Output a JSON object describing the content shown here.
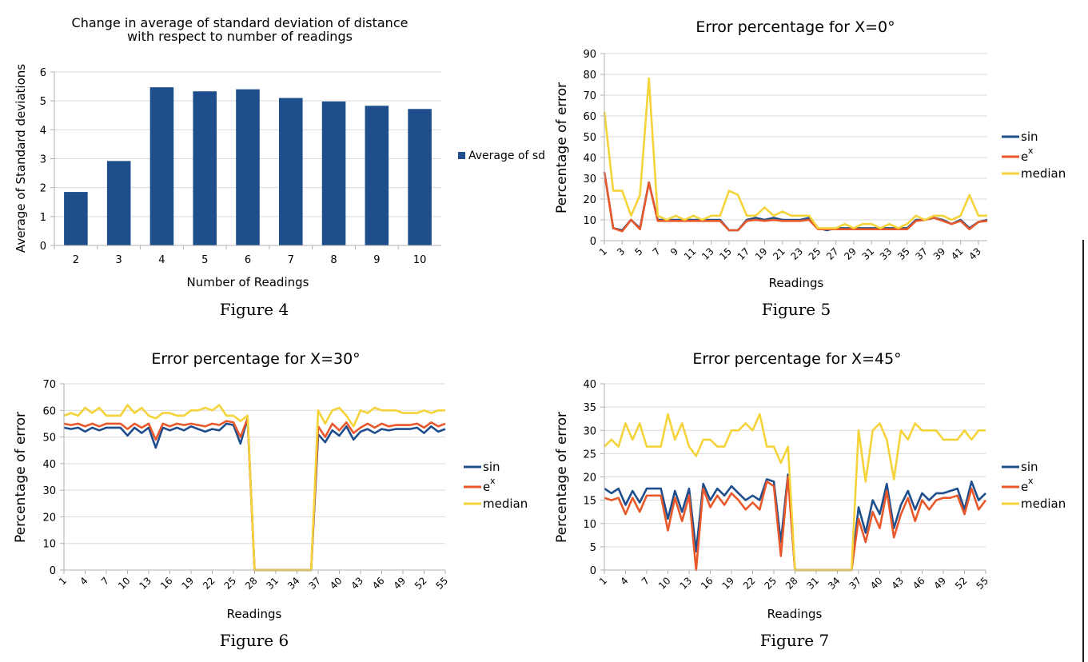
{
  "colors": {
    "bar": "#1f4e8c",
    "sin": "#1f4e8c",
    "ex": "#e8582a",
    "median": "#f5d33a",
    "grid": "#d9d9d9",
    "axis": "#b0b0b0"
  },
  "captions": [
    "Figure 4",
    "Figure 5",
    "Figure 6",
    "Figure 7"
  ],
  "chart_data": [
    {
      "type": "bar",
      "title_lines": [
        "Change in average of standard deviation of distance",
        "with respect to number of readings"
      ],
      "xlabel": "Number of Readings",
      "ylabel": "Average of Standard deviations",
      "categories": [
        "2",
        "3",
        "4",
        "5",
        "6",
        "7",
        "8",
        "9",
        "10"
      ],
      "series": [
        {
          "name": "Average of sd",
          "values": [
            1.85,
            2.92,
            5.47,
            5.33,
            5.4,
            5.1,
            4.98,
            4.83,
            4.72
          ]
        }
      ],
      "ylim": [
        0,
        6
      ],
      "yticks": [
        "0",
        "1",
        "2",
        "3",
        "4",
        "5",
        "6"
      ],
      "grid": true,
      "legend": "right"
    },
    {
      "type": "line",
      "title": "Error percentage for X=0°",
      "xlabel": "Readings",
      "ylabel": "Percentage of error",
      "ylim": [
        0,
        90
      ],
      "yticks": [
        "0",
        "10",
        "20",
        "30",
        "40",
        "50",
        "60",
        "70",
        "80",
        "90"
      ],
      "xticks": [
        "1",
        "3",
        "5",
        "7",
        "9",
        "11",
        "13",
        "15",
        "17",
        "19",
        "21",
        "23",
        "25",
        "27",
        "29",
        "31",
        "33",
        "35",
        "37",
        "39",
        "41",
        "43"
      ],
      "grid": true,
      "legend": "right",
      "legend_labels": [
        "sin",
        "e",
        "x",
        "median"
      ],
      "x": [
        1,
        2,
        3,
        4,
        5,
        6,
        7,
        8,
        9,
        10,
        11,
        12,
        13,
        14,
        15,
        16,
        17,
        18,
        19,
        20,
        21,
        22,
        23,
        24,
        25,
        26,
        27,
        28,
        29,
        30,
        31,
        32,
        33,
        34,
        35,
        36,
        37,
        38,
        39,
        40,
        41,
        42,
        43,
        44
      ],
      "series": [
        {
          "name": "sin",
          "values": [
            33,
            6,
            5,
            10,
            6,
            28,
            10,
            10,
            10,
            10,
            10,
            10,
            10,
            10,
            5,
            5,
            10,
            11,
            10,
            11,
            10,
            10,
            10,
            11,
            6,
            5,
            6,
            6,
            6,
            6,
            6,
            6,
            6,
            6,
            6,
            10,
            10,
            11,
            10,
            8,
            10,
            6,
            9,
            10
          ]
        },
        {
          "name": "ex",
          "values": [
            33,
            6,
            4.5,
            10,
            5.5,
            28,
            9.5,
            9.5,
            9.5,
            9.5,
            9.5,
            9.5,
            9.5,
            9.5,
            5,
            5,
            9.5,
            10,
            9.5,
            10,
            9.5,
            9.5,
            9.5,
            10,
            5.5,
            5.5,
            5.5,
            5.5,
            5.5,
            5.5,
            5.5,
            5.5,
            5.5,
            5.5,
            5.5,
            9.5,
            10,
            11,
            9.5,
            8,
            9.5,
            5.5,
            9,
            9.5
          ]
        },
        {
          "name": "median",
          "values": [
            62,
            24,
            24,
            12,
            22,
            78,
            12,
            10,
            12,
            10,
            12,
            10,
            12,
            12,
            24,
            22,
            12,
            12,
            16,
            12,
            14,
            12,
            12,
            12,
            6,
            6,
            6,
            8,
            6,
            8,
            8,
            6,
            8,
            6,
            8,
            12,
            10,
            12,
            12,
            10,
            12,
            22,
            12,
            12
          ]
        }
      ]
    },
    {
      "type": "line",
      "title": "Error percentage for X=30°",
      "xlabel": "Readings",
      "ylabel": "Percentage of error",
      "ylim": [
        0,
        70
      ],
      "yticks": [
        "0",
        "10",
        "20",
        "30",
        "40",
        "50",
        "60",
        "70"
      ],
      "xticks": [
        "1",
        "4",
        "7",
        "10",
        "13",
        "16",
        "19",
        "22",
        "25",
        "28",
        "31",
        "34",
        "37",
        "40",
        "43",
        "46",
        "49",
        "52",
        "55"
      ],
      "grid": true,
      "legend": "right",
      "legend_labels": [
        "sin",
        "e",
        "x",
        "median"
      ],
      "x": [
        1,
        2,
        3,
        4,
        5,
        6,
        7,
        8,
        9,
        10,
        11,
        12,
        13,
        14,
        15,
        16,
        17,
        18,
        19,
        20,
        21,
        22,
        23,
        24,
        25,
        26,
        27,
        28,
        29,
        30,
        31,
        32,
        33,
        34,
        35,
        36,
        37,
        38,
        39,
        40,
        41,
        42,
        43,
        44,
        45,
        46,
        47,
        48,
        49,
        50,
        51,
        52,
        53,
        54,
        55
      ],
      "series": [
        {
          "name": "sin",
          "values": [
            53.5,
            53,
            53.5,
            52,
            53.5,
            52.5,
            53.5,
            53.5,
            53.5,
            50.5,
            53.5,
            51.5,
            53.5,
            46,
            53.5,
            52.5,
            53.5,
            52.5,
            54,
            53,
            52,
            53,
            52.5,
            55,
            54.5,
            47.5,
            57,
            0,
            0,
            0,
            0,
            0,
            0,
            0,
            0,
            0,
            51,
            48,
            52.5,
            50.5,
            54,
            49,
            52,
            53,
            51.5,
            53,
            52.5,
            53,
            53,
            53,
            53.5,
            51.5,
            54,
            52,
            53
          ]
        },
        {
          "name": "ex",
          "values": [
            55,
            54.5,
            55,
            54,
            55,
            54,
            55,
            55,
            55,
            53,
            55,
            53.5,
            55,
            49,
            55,
            54,
            55,
            54.5,
            55,
            54.5,
            54,
            55,
            54.5,
            56,
            55.5,
            50,
            57,
            0,
            0,
            0,
            0,
            0,
            0,
            0,
            0,
            0,
            54,
            50,
            55,
            52.5,
            55.5,
            51.5,
            53.5,
            55,
            53.5,
            55,
            54,
            54.5,
            54.5,
            54.5,
            55,
            53.5,
            55.5,
            54,
            55
          ]
        },
        {
          "name": "median",
          "values": [
            58,
            59,
            58,
            61,
            59,
            61,
            58,
            58,
            58,
            62,
            59,
            61,
            58,
            57,
            59,
            59,
            58,
            58,
            60,
            60,
            61,
            60,
            62,
            58,
            58,
            56,
            58,
            0,
            0,
            0,
            0,
            0,
            0,
            0,
            0,
            0,
            60,
            55,
            60,
            61,
            58,
            54,
            60,
            59,
            61,
            60,
            60,
            60,
            59,
            59,
            59,
            60,
            59,
            60,
            60
          ]
        }
      ]
    },
    {
      "type": "line",
      "title": "Error percentage for X=45°",
      "xlabel": "Readings",
      "ylabel": "Percentage of error",
      "ylim": [
        0,
        40
      ],
      "yticks": [
        "0",
        "5",
        "10",
        "15",
        "20",
        "25",
        "30",
        "35",
        "40"
      ],
      "xticks": [
        "1",
        "4",
        "7",
        "10",
        "13",
        "16",
        "19",
        "22",
        "25",
        "28",
        "31",
        "34",
        "37",
        "40",
        "43",
        "46",
        "49",
        "52",
        "55"
      ],
      "grid": true,
      "legend": "right",
      "legend_labels": [
        "sin",
        "e",
        "x",
        "median"
      ],
      "x": [
        1,
        2,
        3,
        4,
        5,
        6,
        7,
        8,
        9,
        10,
        11,
        12,
        13,
        14,
        15,
        16,
        17,
        18,
        19,
        20,
        21,
        22,
        23,
        24,
        25,
        26,
        27,
        28,
        29,
        30,
        31,
        32,
        33,
        34,
        35,
        36,
        37,
        38,
        39,
        40,
        41,
        42,
        43,
        44,
        45,
        46,
        47,
        48,
        49,
        50,
        51,
        52,
        53,
        54,
        55
      ],
      "series": [
        {
          "name": "sin",
          "values": [
            17.5,
            16.5,
            17.5,
            14,
            17,
            14.5,
            17.5,
            17.5,
            17.5,
            11,
            17,
            12.5,
            17.5,
            4,
            18.5,
            15,
            17.5,
            16,
            18,
            16.5,
            15,
            16,
            15,
            19.5,
            19,
            6,
            20.5,
            0,
            0,
            0,
            0,
            0,
            0,
            0,
            0,
            0,
            13.5,
            8,
            15,
            12,
            18.5,
            9,
            14,
            17,
            13,
            16.5,
            15,
            16.5,
            16.5,
            17,
            17.5,
            13,
            19,
            15,
            16.5
          ]
        },
        {
          "name": "ex",
          "values": [
            15.5,
            15,
            15.5,
            12,
            15.5,
            12.5,
            16,
            16,
            16,
            8.5,
            15.5,
            10.5,
            16,
            0,
            17.5,
            13.5,
            16,
            14,
            16.5,
            15,
            13,
            14.5,
            13,
            19,
            18,
            3,
            20,
            0,
            0,
            0,
            0,
            0,
            0,
            0,
            0,
            0,
            11,
            6,
            12.5,
            9,
            17,
            7,
            12,
            15.5,
            10.5,
            15,
            13,
            15,
            15.5,
            15.5,
            16,
            12,
            17.5,
            13,
            15
          ]
        },
        {
          "name": "median",
          "values": [
            26.5,
            28,
            26.5,
            31.5,
            28,
            31.5,
            26.5,
            26.5,
            26.5,
            33.5,
            28,
            31.5,
            26.5,
            24.5,
            28,
            28,
            26.5,
            26.5,
            30,
            30,
            31.5,
            30,
            33.5,
            26.5,
            26.5,
            23,
            26.5,
            0,
            0,
            0,
            0,
            0,
            0,
            0,
            0,
            0,
            30,
            19,
            30,
            31.5,
            28,
            19.5,
            30,
            28,
            31.5,
            30,
            30,
            30,
            28,
            28,
            28,
            30,
            28,
            30,
            30
          ]
        }
      ]
    }
  ]
}
